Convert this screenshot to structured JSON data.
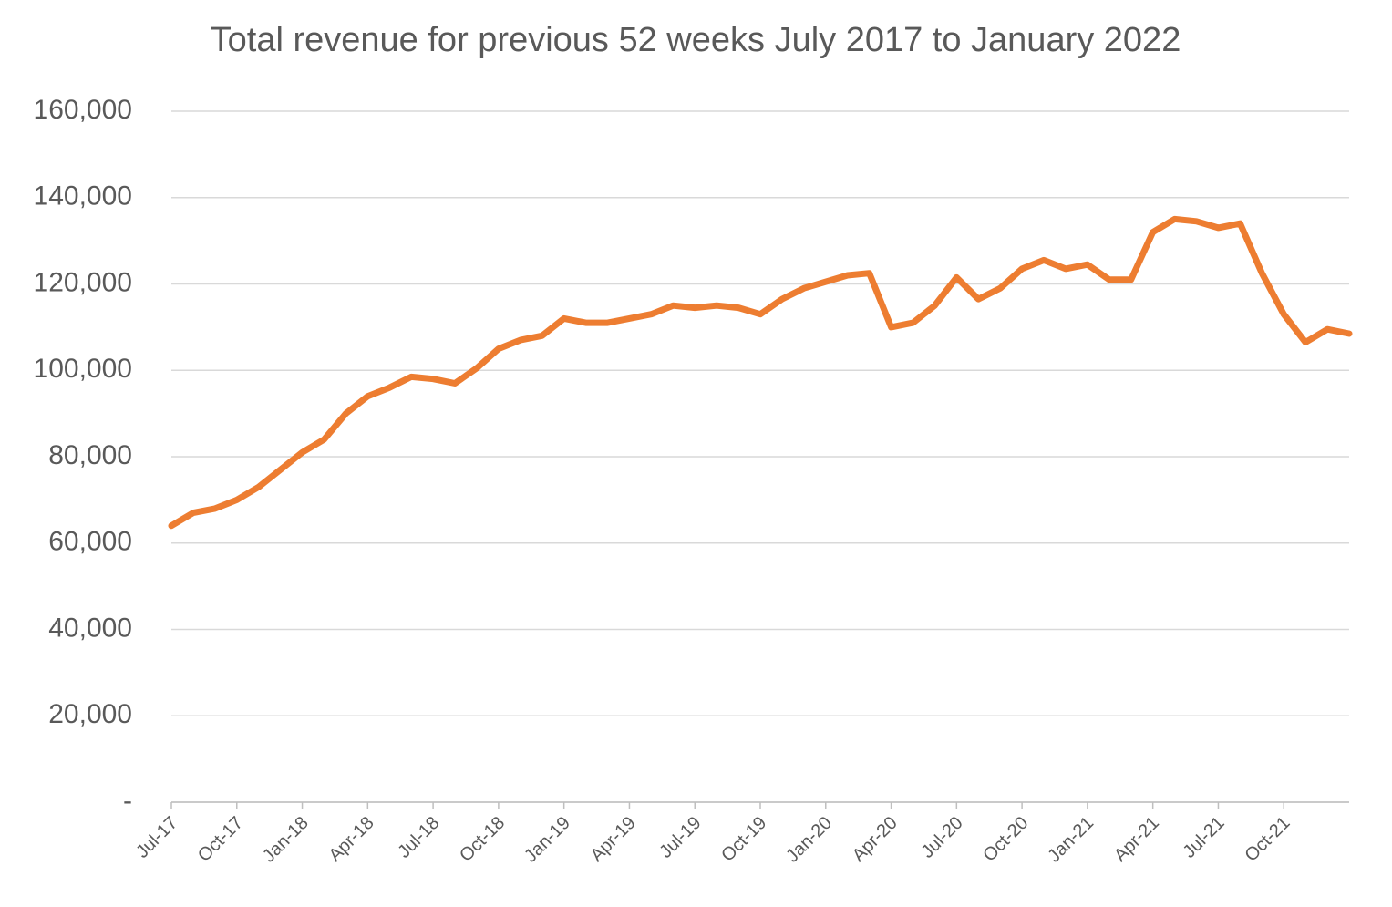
{
  "chart_data": {
    "type": "line",
    "title": "Total revenue for previous 52 weeks July 2017 to January 2022",
    "categories": [
      "Jul-17",
      null,
      null,
      "Oct-17",
      null,
      null,
      "Jan-18",
      null,
      null,
      "Apr-18",
      null,
      null,
      "Jul-18",
      null,
      null,
      "Oct-18",
      null,
      null,
      "Jan-19",
      null,
      null,
      "Apr-19",
      null,
      null,
      "Jul-19",
      null,
      null,
      "Oct-19",
      null,
      null,
      "Jan-20",
      null,
      null,
      "Apr-20",
      null,
      null,
      "Jul-20",
      null,
      null,
      "Oct-20",
      null,
      null,
      "Jan-21",
      null,
      null,
      "Apr-21",
      null,
      null,
      "Jul-21",
      null,
      null,
      "Oct-21",
      null,
      null,
      null
    ],
    "series": [
      {
        "name": "Total revenue",
        "color": "#ed7d31",
        "values": [
          64000,
          67000,
          68000,
          70000,
          73000,
          77000,
          81000,
          84000,
          90000,
          94000,
          96000,
          98500,
          98000,
          97000,
          100500,
          105000,
          107000,
          108000,
          112000,
          111000,
          111000,
          112000,
          113000,
          115000,
          114500,
          115000,
          114500,
          113000,
          116500,
          119000,
          120500,
          122000,
          122500,
          110000,
          111000,
          115000,
          121500,
          116500,
          119000,
          123500,
          125500,
          123500,
          124500,
          121000,
          121000,
          132000,
          135000,
          134500,
          133000,
          134000,
          122500,
          113000,
          106500,
          109500,
          108500
        ]
      }
    ],
    "ylim": [
      0,
      160000
    ],
    "yticks": [
      {
        "value": 0,
        "label": "-"
      },
      {
        "value": 20000,
        "label": "20,000"
      },
      {
        "value": 40000,
        "label": "40,000"
      },
      {
        "value": 60000,
        "label": "60,000"
      },
      {
        "value": 80000,
        "label": "80,000"
      },
      {
        "value": 100000,
        "label": "100,000"
      },
      {
        "value": 120000,
        "label": "120,000"
      },
      {
        "value": 140000,
        "label": "140,000"
      },
      {
        "value": 160000,
        "label": "160,000"
      }
    ],
    "grid": true
  }
}
